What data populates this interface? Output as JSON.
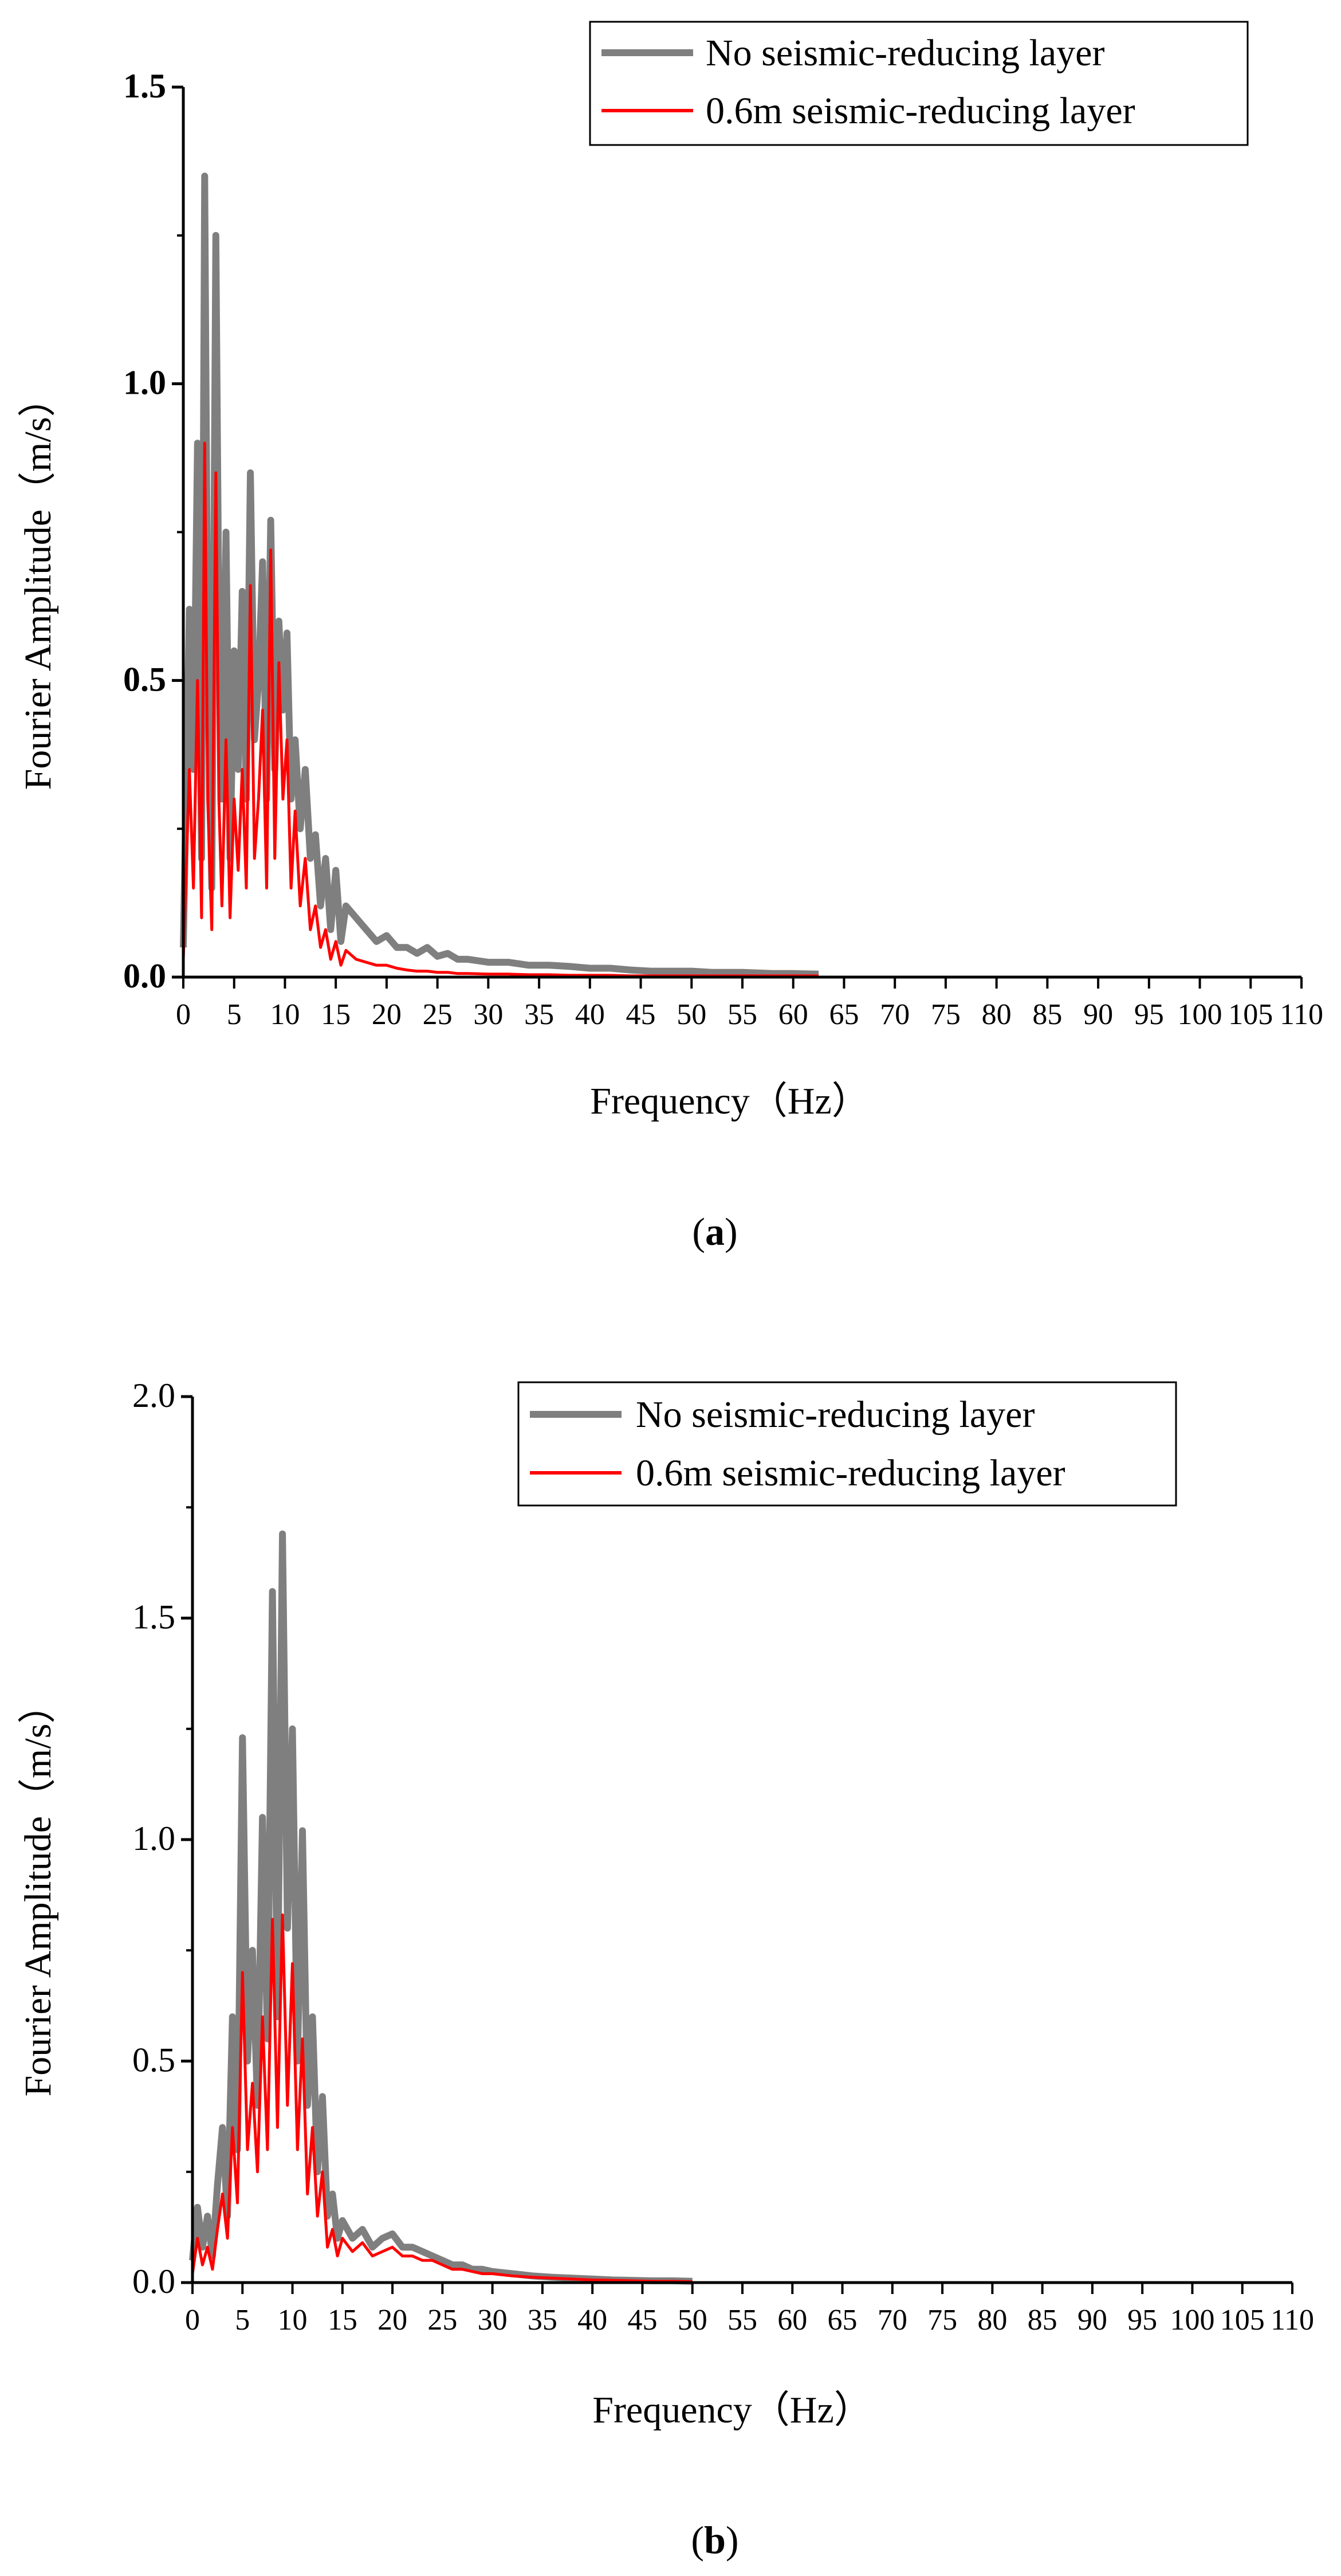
{
  "chart_data": [
    {
      "type": "line",
      "panel": "a",
      "caption_open": "(",
      "caption_letter": "a",
      "caption_close": ")",
      "title": "",
      "xlabel": "Frequency（Hz）",
      "ylabel": "Fourier Amplitude（m/s）",
      "xlim": [
        0,
        110
      ],
      "ylim": [
        0,
        1.5
      ],
      "x_ticks": [
        0,
        5,
        10,
        15,
        20,
        25,
        30,
        35,
        40,
        45,
        50,
        55,
        60,
        65,
        70,
        75,
        80,
        85,
        90,
        95,
        100,
        105,
        110
      ],
      "x_tick_labels": [
        "0",
        "5",
        "10",
        "15",
        "20",
        "25",
        "30",
        "35",
        "40",
        "45",
        "50",
        "55",
        "60",
        "65",
        "70",
        "75",
        "80",
        "85",
        "90",
        "95",
        "100",
        "105",
        "110"
      ],
      "y_ticks": [
        0.0,
        0.5,
        1.0,
        1.5
      ],
      "y_tick_labels": [
        "0.0",
        "0.5",
        "1.0",
        "1.5"
      ],
      "y_tick_bold": true,
      "legend_position": "top-right",
      "series": [
        {
          "name": "No seismic-reducing layer",
          "color": "#7f7f7f",
          "x": [
            0,
            0.6,
            1,
            1.4,
            1.8,
            2.1,
            2.4,
            2.8,
            3.2,
            3.5,
            3.8,
            4.2,
            4.6,
            5,
            5.4,
            5.8,
            6.2,
            6.6,
            7,
            7.4,
            7.8,
            8.2,
            8.6,
            9,
            9.4,
            9.8,
            10.2,
            10.6,
            11,
            11.5,
            12,
            12.5,
            13,
            13.5,
            14,
            14.5,
            15,
            15.5,
            16,
            17,
            18,
            19,
            20,
            21,
            22,
            23,
            24,
            25,
            26,
            27,
            28,
            30,
            32,
            34,
            36,
            38,
            40,
            42,
            44,
            46,
            48,
            50,
            52,
            55,
            58,
            60,
            62.5
          ],
          "values": [
            0.05,
            0.62,
            0.35,
            0.9,
            0.2,
            1.35,
            0.55,
            0.15,
            1.25,
            0.6,
            0.3,
            0.75,
            0.2,
            0.55,
            0.35,
            0.65,
            0.3,
            0.85,
            0.4,
            0.5,
            0.7,
            0.3,
            0.77,
            0.35,
            0.6,
            0.45,
            0.58,
            0.3,
            0.4,
            0.25,
            0.35,
            0.2,
            0.24,
            0.12,
            0.2,
            0.08,
            0.18,
            0.06,
            0.12,
            0.1,
            0.08,
            0.06,
            0.07,
            0.05,
            0.05,
            0.04,
            0.05,
            0.035,
            0.04,
            0.03,
            0.03,
            0.025,
            0.025,
            0.02,
            0.02,
            0.018,
            0.015,
            0.015,
            0.012,
            0.01,
            0.01,
            0.01,
            0.008,
            0.008,
            0.006,
            0.006,
            0.005
          ]
        },
        {
          "name": "0.6m seismic-reducing layer",
          "color": "#ff0000",
          "x": [
            0,
            0.6,
            1,
            1.4,
            1.8,
            2.1,
            2.4,
            2.8,
            3.2,
            3.5,
            3.8,
            4.2,
            4.6,
            5,
            5.4,
            5.8,
            6.2,
            6.6,
            7,
            7.4,
            7.8,
            8.2,
            8.6,
            9,
            9.4,
            9.8,
            10.2,
            10.6,
            11,
            11.5,
            12,
            12.5,
            13,
            13.5,
            14,
            14.5,
            15,
            15.5,
            16,
            17,
            18,
            19,
            20,
            21,
            22,
            23,
            24,
            25,
            26,
            27,
            28,
            30,
            32,
            34,
            36,
            38,
            40,
            42,
            44,
            46,
            48,
            50,
            52,
            55,
            58,
            60,
            62.5
          ],
          "values": [
            0.03,
            0.35,
            0.15,
            0.5,
            0.1,
            0.9,
            0.3,
            0.08,
            0.85,
            0.3,
            0.12,
            0.4,
            0.1,
            0.3,
            0.18,
            0.35,
            0.15,
            0.66,
            0.2,
            0.3,
            0.45,
            0.15,
            0.72,
            0.2,
            0.53,
            0.3,
            0.4,
            0.15,
            0.28,
            0.12,
            0.2,
            0.08,
            0.12,
            0.05,
            0.08,
            0.03,
            0.06,
            0.02,
            0.045,
            0.03,
            0.025,
            0.02,
            0.02,
            0.015,
            0.012,
            0.01,
            0.01,
            0.008,
            0.008,
            0.006,
            0.006,
            0.005,
            0.005,
            0.004,
            0.004,
            0.003,
            0.003,
            0.003,
            0.002,
            0.002,
            0.002,
            0.002,
            0.002,
            0.002,
            0.002,
            0.002,
            0.002
          ]
        }
      ]
    },
    {
      "type": "line",
      "panel": "b",
      "caption_open": "(",
      "caption_letter": "b",
      "caption_close": ")",
      "title": "",
      "xlabel": "Frequency（Hz）",
      "ylabel": "Fourier Amplitude（m/s）",
      "xlim": [
        0,
        110
      ],
      "ylim": [
        0,
        2.0
      ],
      "x_ticks": [
        0,
        5,
        10,
        15,
        20,
        25,
        30,
        35,
        40,
        45,
        50,
        55,
        60,
        65,
        70,
        75,
        80,
        85,
        90,
        95,
        100,
        105,
        110
      ],
      "x_tick_labels": [
        "0",
        "5",
        "10",
        "15",
        "20",
        "25",
        "30",
        "35",
        "40",
        "45",
        "50",
        "55",
        "60",
        "65",
        "70",
        "75",
        "80",
        "85",
        "90",
        "95",
        "100",
        "105",
        "110"
      ],
      "y_ticks": [
        0.0,
        0.5,
        1.0,
        1.5,
        2.0
      ],
      "y_tick_labels": [
        "0.0",
        "0.5",
        "1.0",
        "1.5",
        "2.0"
      ],
      "y_tick_bold": false,
      "legend_position": "top-right",
      "series": [
        {
          "name": "No seismic-reducing layer",
          "color": "#7f7f7f",
          "x": [
            0,
            0.5,
            1,
            1.5,
            2,
            2.5,
            3,
            3.5,
            4,
            4.5,
            5,
            5.5,
            6,
            6.5,
            7,
            7.5,
            8,
            8.5,
            9,
            9.5,
            10,
            10.5,
            11,
            11.5,
            12,
            12.5,
            13,
            13.5,
            14,
            14.5,
            15,
            16,
            17,
            18,
            19,
            20,
            21,
            22,
            23,
            24,
            25,
            26,
            27,
            28,
            29,
            30,
            32,
            34,
            36,
            38,
            40,
            42,
            44,
            46,
            48,
            50
          ],
          "values": [
            0.05,
            0.17,
            0.08,
            0.15,
            0.06,
            0.22,
            0.35,
            0.15,
            0.6,
            0.3,
            1.23,
            0.5,
            0.75,
            0.4,
            1.05,
            0.55,
            1.56,
            0.6,
            1.69,
            0.8,
            1.25,
            0.5,
            1.02,
            0.4,
            0.6,
            0.25,
            0.42,
            0.15,
            0.2,
            0.1,
            0.14,
            0.1,
            0.12,
            0.08,
            0.1,
            0.11,
            0.08,
            0.08,
            0.07,
            0.06,
            0.05,
            0.04,
            0.04,
            0.03,
            0.03,
            0.025,
            0.02,
            0.015,
            0.012,
            0.01,
            0.008,
            0.006,
            0.005,
            0.004,
            0.004,
            0.003
          ]
        },
        {
          "name": "0.6m seismic-reducing layer",
          "color": "#ff0000",
          "x": [
            0,
            0.5,
            1,
            1.5,
            2,
            2.5,
            3,
            3.5,
            4,
            4.5,
            5,
            5.5,
            6,
            6.5,
            7,
            7.5,
            8,
            8.5,
            9,
            9.5,
            10,
            10.5,
            11,
            11.5,
            12,
            12.5,
            13,
            13.5,
            14,
            14.5,
            15,
            16,
            17,
            18,
            19,
            20,
            21,
            22,
            23,
            24,
            25,
            26,
            27,
            28,
            29,
            30,
            32,
            34,
            36,
            38,
            40,
            42,
            44,
            46,
            48,
            50
          ],
          "values": [
            0.02,
            0.1,
            0.04,
            0.08,
            0.03,
            0.12,
            0.2,
            0.1,
            0.35,
            0.18,
            0.7,
            0.3,
            0.45,
            0.25,
            0.6,
            0.3,
            0.82,
            0.35,
            0.83,
            0.4,
            0.72,
            0.3,
            0.55,
            0.2,
            0.35,
            0.15,
            0.25,
            0.08,
            0.12,
            0.06,
            0.1,
            0.07,
            0.09,
            0.06,
            0.07,
            0.08,
            0.06,
            0.06,
            0.05,
            0.05,
            0.04,
            0.03,
            0.03,
            0.025,
            0.02,
            0.02,
            0.015,
            0.012,
            0.01,
            0.008,
            0.006,
            0.005,
            0.004,
            0.003,
            0.003,
            0.002
          ]
        }
      ]
    }
  ]
}
